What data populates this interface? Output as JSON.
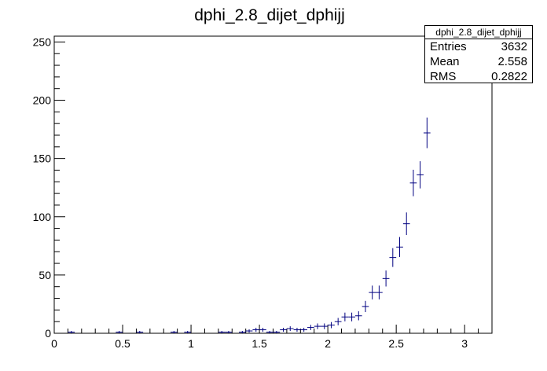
{
  "chart_data": {
    "type": "scatter",
    "title": "dphi_2.8_dijet_dphijj",
    "xlabel": "",
    "ylabel": "",
    "xlim": [
      0,
      3.2
    ],
    "ylim": [
      0,
      255
    ],
    "grid": false,
    "x_ticks": [
      "0",
      "0.5",
      "1",
      "1.5",
      "2",
      "2.5",
      "3"
    ],
    "x_tick_values": [
      0,
      0.5,
      1,
      1.5,
      2,
      2.5,
      3
    ],
    "y_ticks": [
      "0",
      "50",
      "100",
      "150",
      "200",
      "250"
    ],
    "y_tick_values": [
      0,
      50,
      100,
      150,
      200,
      250
    ],
    "bin_width": 0.05,
    "series": [
      {
        "color": "#000080",
        "x": [
          0.125,
          0.475,
          0.625,
          0.875,
          0.975,
          1.225,
          1.275,
          1.375,
          1.425,
          1.475,
          1.525,
          1.575,
          1.625,
          1.675,
          1.725,
          1.775,
          1.825,
          1.875,
          1.925,
          1.975,
          2.025,
          2.075,
          2.125,
          2.175,
          2.225,
          2.275,
          2.325,
          2.375,
          2.425,
          2.475,
          2.525,
          2.575,
          2.625,
          2.675,
          2.725
        ],
        "values": [
          1,
          1,
          1,
          1,
          1,
          1,
          1,
          1,
          2,
          3,
          3,
          1,
          1,
          3,
          4,
          3,
          3,
          5,
          6,
          6,
          7,
          10,
          14,
          14,
          15,
          23,
          35,
          35,
          47,
          65,
          74,
          94,
          129,
          136,
          172
        ]
      }
    ]
  },
  "stats": {
    "title": "dphi_2.8_dijet_dphijj",
    "rows": [
      {
        "label": "Entries",
        "value": "3632"
      },
      {
        "label": "Mean",
        "value": "2.558"
      },
      {
        "label": "RMS",
        "value": "0.2822"
      }
    ]
  }
}
